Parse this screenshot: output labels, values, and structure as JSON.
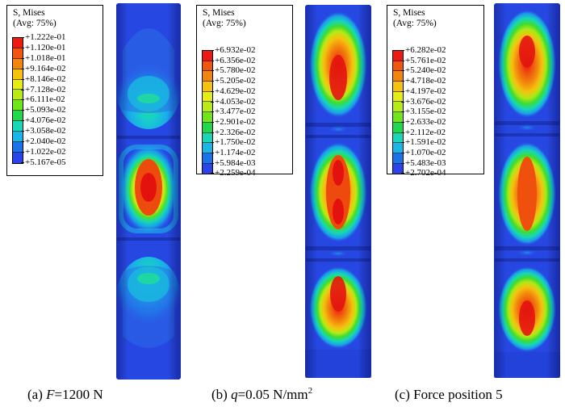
{
  "legend_colors": [
    "#ee1a0f",
    "#f2550d",
    "#f2860d",
    "#f5c20e",
    "#e6ec16",
    "#b8ea15",
    "#6fe61a",
    "#1fd84d",
    "#17d7b8",
    "#1ab6e8",
    "#1a74e8",
    "#2a43ea"
  ],
  "panels": [
    {
      "legend": {
        "title_line1": "S, Mises",
        "title_line2": "(Avg: 75%)",
        "values": [
          "+1.222e-01",
          "+1.120e-01",
          "+1.018e-01",
          "+9.164e-02",
          "+8.146e-02",
          "+7.128e-02",
          "+6.111e-02",
          "+5.093e-02",
          "+4.076e-02",
          "+3.058e-02",
          "+2.040e-02",
          "+1.022e-02",
          "+5.167e-05"
        ]
      },
      "caption": {
        "prefix": "(a) ",
        "var": "F",
        "rest": "=1200 N",
        "sup": ""
      }
    },
    {
      "legend": {
        "title_line1": "S, Mises",
        "title_line2": "(Avg: 75%)",
        "values": [
          "+6.932e-02",
          "+6.356e-02",
          "+5.780e-02",
          "+5.205e-02",
          "+4.629e-02",
          "+4.053e-02",
          "+3.477e-02",
          "+2.901e-02",
          "+2.326e-02",
          "+1.750e-02",
          "+1.174e-02",
          "+5.984e-03",
          "+2.259e-04"
        ]
      },
      "caption": {
        "prefix": "(b) ",
        "var": "q",
        "rest": "=0.05 N/mm",
        "sup": "2"
      }
    },
    {
      "legend": {
        "title_line1": "S, Mises",
        "title_line2": "(Avg: 75%)",
        "values": [
          "+6.282e-02",
          "+5.761e-02",
          "+5.240e-02",
          "+4.718e-02",
          "+4.197e-02",
          "+3.676e-02",
          "+3.155e-02",
          "+2.633e-02",
          "+2.112e-02",
          "+1.591e-02",
          "+1.070e-02",
          "+5.483e-03",
          "+2.702e-04"
        ]
      },
      "caption": {
        "prefix": "(c) ",
        "var": "",
        "rest": "Force position 5",
        "sup": ""
      }
    }
  ]
}
